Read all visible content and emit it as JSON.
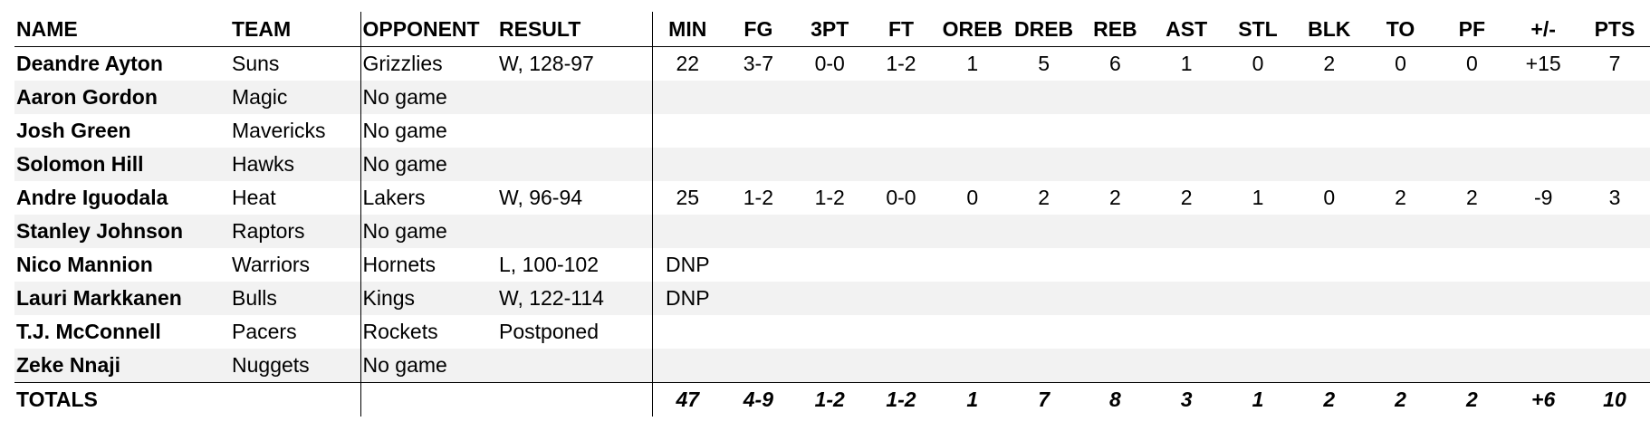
{
  "headers": [
    "NAME",
    "TEAM",
    "OPPONENT",
    "RESULT",
    "MIN",
    "FG",
    "3PT",
    "FT",
    "OREB",
    "DREB",
    "REB",
    "AST",
    "STL",
    "BLK",
    "TO",
    "PF",
    "+/-",
    "PTS"
  ],
  "rows": [
    {
      "name": "Deandre Ayton",
      "team": "Suns",
      "opponent": "Grizzlies",
      "result": "W, 128-97",
      "stats": [
        "22",
        "3-7",
        "0-0",
        "1-2",
        "1",
        "5",
        "6",
        "1",
        "0",
        "2",
        "0",
        "0",
        "+15",
        "7"
      ]
    },
    {
      "name": "Aaron Gordon",
      "team": "Magic",
      "opponent": "No game",
      "result": "",
      "stats": [
        "",
        "",
        "",
        "",
        "",
        "",
        "",
        "",
        "",
        "",
        "",
        "",
        "",
        ""
      ]
    },
    {
      "name": "Josh Green",
      "team": "Mavericks",
      "opponent": "No game",
      "result": "",
      "stats": [
        "",
        "",
        "",
        "",
        "",
        "",
        "",
        "",
        "",
        "",
        "",
        "",
        "",
        ""
      ]
    },
    {
      "name": "Solomon Hill",
      "team": "Hawks",
      "opponent": "No game",
      "result": "",
      "stats": [
        "",
        "",
        "",
        "",
        "",
        "",
        "",
        "",
        "",
        "",
        "",
        "",
        "",
        ""
      ]
    },
    {
      "name": "Andre Iguodala",
      "team": "Heat",
      "opponent": "Lakers",
      "result": "W, 96-94",
      "stats": [
        "25",
        "1-2",
        "1-2",
        "0-0",
        "0",
        "2",
        "2",
        "2",
        "1",
        "0",
        "2",
        "2",
        "-9",
        "3"
      ]
    },
    {
      "name": "Stanley Johnson",
      "team": "Raptors",
      "opponent": "No game",
      "result": "",
      "stats": [
        "",
        "",
        "",
        "",
        "",
        "",
        "",
        "",
        "",
        "",
        "",
        "",
        "",
        ""
      ]
    },
    {
      "name": "Nico Mannion",
      "team": "Warriors",
      "opponent": "Hornets",
      "result": "L, 100-102",
      "stats": [
        "DNP",
        "",
        "",
        "",
        "",
        "",
        "",
        "",
        "",
        "",
        "",
        "",
        "",
        ""
      ]
    },
    {
      "name": "Lauri Markkanen",
      "team": "Bulls",
      "opponent": "Kings",
      "result": "W, 122-114",
      "stats": [
        "DNP",
        "",
        "",
        "",
        "",
        "",
        "",
        "",
        "",
        "",
        "",
        "",
        "",
        ""
      ]
    },
    {
      "name": "T.J. McConnell",
      "team": "Pacers",
      "opponent": "Rockets",
      "result": "Postponed",
      "stats": [
        "",
        "",
        "",
        "",
        "",
        "",
        "",
        "",
        "",
        "",
        "",
        "",
        "",
        ""
      ]
    },
    {
      "name": "Zeke Nnaji",
      "team": "Nuggets",
      "opponent": "No game",
      "result": "",
      "stats": [
        "",
        "",
        "",
        "",
        "",
        "",
        "",
        "",
        "",
        "",
        "",
        "",
        "",
        ""
      ]
    }
  ],
  "totals": {
    "label": "TOTALS",
    "stats": [
      "47",
      "4-9",
      "1-2",
      "1-2",
      "1",
      "7",
      "8",
      "3",
      "1",
      "2",
      "2",
      "2",
      "+6",
      "10"
    ]
  },
  "colors": {
    "stripe": "#f2f2f2",
    "rule": "#000000"
  }
}
